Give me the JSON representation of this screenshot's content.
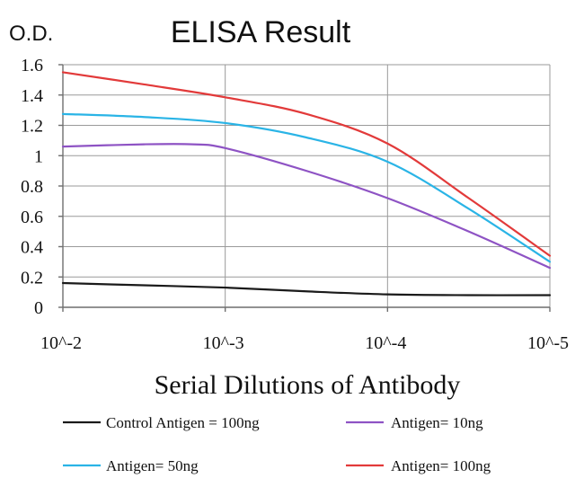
{
  "chart_data": {
    "type": "line",
    "title": "ELISA Result",
    "ylabel": "O.D.",
    "xlabel": "Serial Dilutions of Antibody",
    "ylim": [
      0,
      1.6
    ],
    "yticks": [
      0,
      0.2,
      0.4,
      0.6,
      0.8,
      1,
      1.2,
      1.4,
      1.6
    ],
    "ytick_labels": [
      "0",
      "0.2",
      "0.4",
      "0.6",
      "0.8",
      "1",
      "1.2",
      "1.4",
      "1.6"
    ],
    "categories": [
      "10^-2",
      "10^-3",
      "10^-4",
      "10^-5"
    ],
    "grid": true,
    "legend_position": "bottom",
    "series": [
      {
        "name": "Control Antigen = 100ng",
        "color": "#1a1a1a",
        "points": [
          [
            0,
            0.16
          ],
          [
            0.5,
            0.145
          ],
          [
            1,
            0.13
          ],
          [
            1.5,
            0.105
          ],
          [
            2,
            0.085
          ],
          [
            2.5,
            0.08
          ],
          [
            3,
            0.08
          ]
        ]
      },
      {
        "name": "Antigen= 10ng",
        "color": "#8e53c4",
        "points": [
          [
            0,
            1.06
          ],
          [
            0.5,
            1.075
          ],
          [
            0.8,
            1.075
          ],
          [
            1,
            1.05
          ],
          [
            1.5,
            0.9
          ],
          [
            2,
            0.72
          ],
          [
            2.5,
            0.5
          ],
          [
            3,
            0.26
          ]
        ]
      },
      {
        "name": "Antigen= 50ng",
        "color": "#2ab4e6",
        "points": [
          [
            0,
            1.275
          ],
          [
            0.5,
            1.255
          ],
          [
            1,
            1.215
          ],
          [
            1.5,
            1.12
          ],
          [
            2,
            0.96
          ],
          [
            2.5,
            0.65
          ],
          [
            3,
            0.3
          ]
        ]
      },
      {
        "name": "Antigen= 100ng",
        "color": "#e23a3a",
        "points": [
          [
            0,
            1.55
          ],
          [
            0.5,
            1.47
          ],
          [
            1,
            1.385
          ],
          [
            1.5,
            1.275
          ],
          [
            2,
            1.08
          ],
          [
            2.5,
            0.72
          ],
          [
            3,
            0.34
          ]
        ]
      }
    ]
  }
}
